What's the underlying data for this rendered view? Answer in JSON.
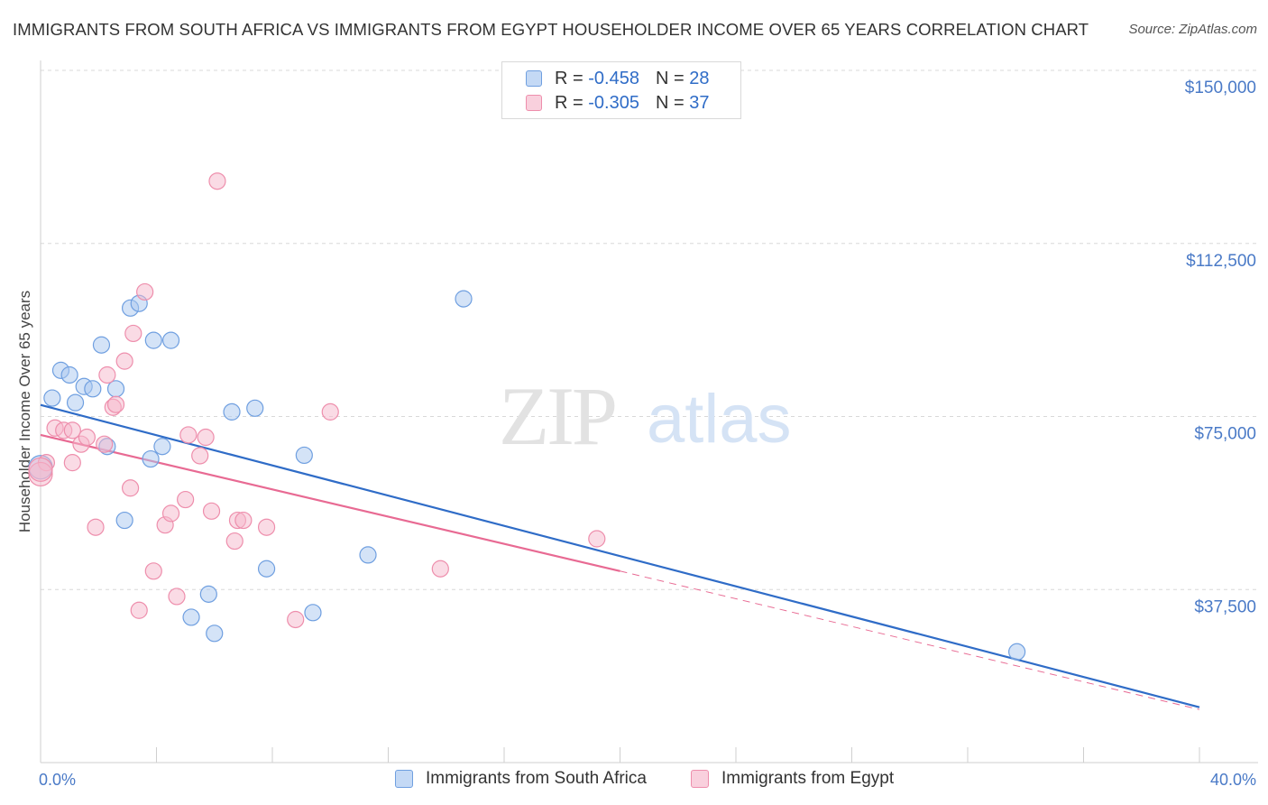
{
  "header": {
    "title": "IMMIGRANTS FROM SOUTH AFRICA VS IMMIGRANTS FROM EGYPT HOUSEHOLDER INCOME OVER 65 YEARS CORRELATION CHART",
    "source": "Source: ZipAtlas.com"
  },
  "watermark": {
    "zip": "ZIP",
    "atlas": "atlas"
  },
  "legend": {
    "r_label": "R =",
    "n_label": "N =",
    "series": [
      {
        "r": "-0.458",
        "n": "28"
      },
      {
        "r": "-0.305",
        "n": "37"
      }
    ]
  },
  "colors": {
    "blue_fill": "#a9c8f0",
    "blue_stroke": "#6f9fe0",
    "blue_line": "#2f6cc7",
    "pink_fill": "#f6b8cb",
    "pink_stroke": "#ee8eac",
    "pink_line": "#e86a93",
    "tick_text": "#4a7ac7"
  },
  "chart_data": {
    "type": "scatter",
    "title": "IMMIGRANTS FROM SOUTH AFRICA VS IMMIGRANTS FROM EGYPT HOUSEHOLDER INCOME OVER 65 YEARS CORRELATION CHART",
    "xlabel": "",
    "ylabel": "Householder Income Over 65 years",
    "xlim": [
      0,
      40
    ],
    "ylim": [
      0,
      150000
    ],
    "x_tick_labels": [
      "0.0%",
      "40.0%"
    ],
    "y_ticks": [
      37500,
      75000,
      112500,
      150000
    ],
    "y_tick_labels": [
      "$37,500",
      "$75,000",
      "$112,500",
      "$150,000"
    ],
    "grid": true,
    "legend_position": "top-center",
    "series": [
      {
        "name": "Immigrants from South Africa",
        "color": "#6f9fe0",
        "r": -0.458,
        "n": 28,
        "trend": {
          "x": [
            0,
            40
          ],
          "y": [
            77500,
            12000
          ]
        },
        "points": [
          [
            0.0,
            64000
          ],
          [
            0.4,
            79000
          ],
          [
            0.7,
            85000
          ],
          [
            1.0,
            84000
          ],
          [
            1.2,
            78000
          ],
          [
            1.5,
            81500
          ],
          [
            1.8,
            81000
          ],
          [
            2.1,
            90500
          ],
          [
            2.3,
            68500
          ],
          [
            2.6,
            81000
          ],
          [
            2.9,
            52500
          ],
          [
            3.1,
            98500
          ],
          [
            3.4,
            99500
          ],
          [
            3.8,
            65800
          ],
          [
            3.9,
            91500
          ],
          [
            4.2,
            68500
          ],
          [
            4.5,
            91500
          ],
          [
            5.2,
            31500
          ],
          [
            5.8,
            36500
          ],
          [
            6.0,
            28000
          ],
          [
            6.6,
            76000
          ],
          [
            7.4,
            76800
          ],
          [
            7.8,
            42000
          ],
          [
            9.1,
            66600
          ],
          [
            9.4,
            32500
          ],
          [
            11.3,
            45000
          ],
          [
            14.6,
            100500
          ],
          [
            33.7,
            24000
          ]
        ]
      },
      {
        "name": "Immigrants from Egypt",
        "color": "#ee8eac",
        "r": -0.305,
        "n": 37,
        "trend": {
          "x": [
            0,
            20
          ],
          "y": [
            71000,
            41500
          ]
        },
        "trend_dashed": {
          "x": [
            20,
            40
          ],
          "y": [
            41500,
            11500
          ]
        },
        "points": [
          [
            0.2,
            65000
          ],
          [
            0.5,
            72500
          ],
          [
            0.8,
            72000
          ],
          [
            1.1,
            72000
          ],
          [
            1.1,
            65000
          ],
          [
            1.4,
            69000
          ],
          [
            1.6,
            70500
          ],
          [
            1.9,
            51000
          ],
          [
            2.2,
            69000
          ],
          [
            2.3,
            84000
          ],
          [
            2.5,
            77000
          ],
          [
            2.6,
            77600
          ],
          [
            2.9,
            87000
          ],
          [
            3.1,
            59500
          ],
          [
            3.2,
            93000
          ],
          [
            3.4,
            33000
          ],
          [
            3.6,
            102000
          ],
          [
            3.9,
            41500
          ],
          [
            4.3,
            51500
          ],
          [
            4.5,
            54000
          ],
          [
            4.7,
            36000
          ],
          [
            5.0,
            57000
          ],
          [
            5.1,
            71000
          ],
          [
            5.5,
            66500
          ],
          [
            5.7,
            70500
          ],
          [
            5.9,
            54500
          ],
          [
            6.1,
            126000
          ],
          [
            6.7,
            48000
          ],
          [
            6.8,
            52500
          ],
          [
            7.0,
            52500
          ],
          [
            7.8,
            51000
          ],
          [
            8.8,
            31000
          ],
          [
            10.0,
            76000
          ],
          [
            13.8,
            42000
          ],
          [
            19.2,
            48500
          ],
          [
            0.0,
            62500
          ],
          [
            0.0,
            63500
          ]
        ]
      }
    ]
  }
}
